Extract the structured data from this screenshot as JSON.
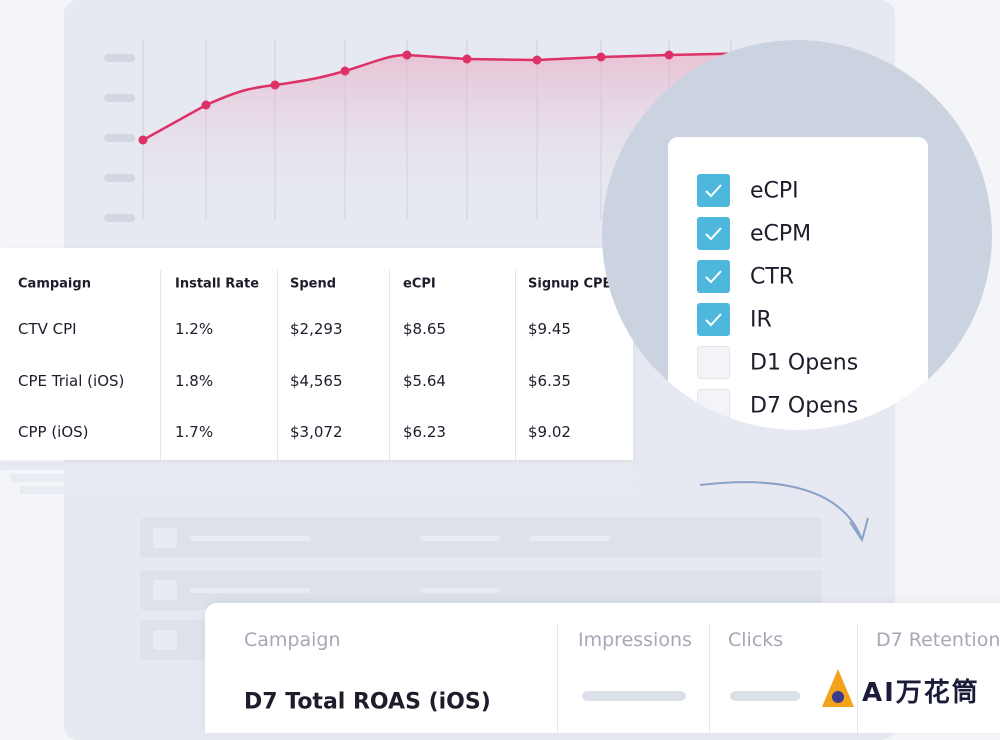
{
  "table": {
    "columns": [
      "Campaign",
      "Install Rate",
      "Spend",
      "eCPI",
      "Signup CPE"
    ],
    "rows": [
      [
        "CTV CPI",
        "1.2%",
        "$2,293",
        "$8.65",
        "$9.45"
      ],
      [
        "CPE Trial (iOS)",
        "1.8%",
        "$4,565",
        "$5.64",
        "$6.35"
      ],
      [
        "CPP (iOS)",
        "1.7%",
        "$3,072",
        "$6.23",
        "$9.02"
      ]
    ]
  },
  "metrics": [
    {
      "label": "eCPI",
      "checked": true
    },
    {
      "label": "eCPM",
      "checked": true
    },
    {
      "label": "CTR",
      "checked": true
    },
    {
      "label": "IR",
      "checked": true
    },
    {
      "label": "D1 Opens",
      "checked": false
    },
    {
      "label": "D7 Opens",
      "checked": false
    }
  ],
  "bottom_table": {
    "columns": [
      "Campaign",
      "Impressions",
      "Clicks",
      "D7 Retention"
    ],
    "rows": [
      [
        "D7 Total ROAS (iOS)"
      ]
    ]
  },
  "watermark": "AI万花筒"
}
